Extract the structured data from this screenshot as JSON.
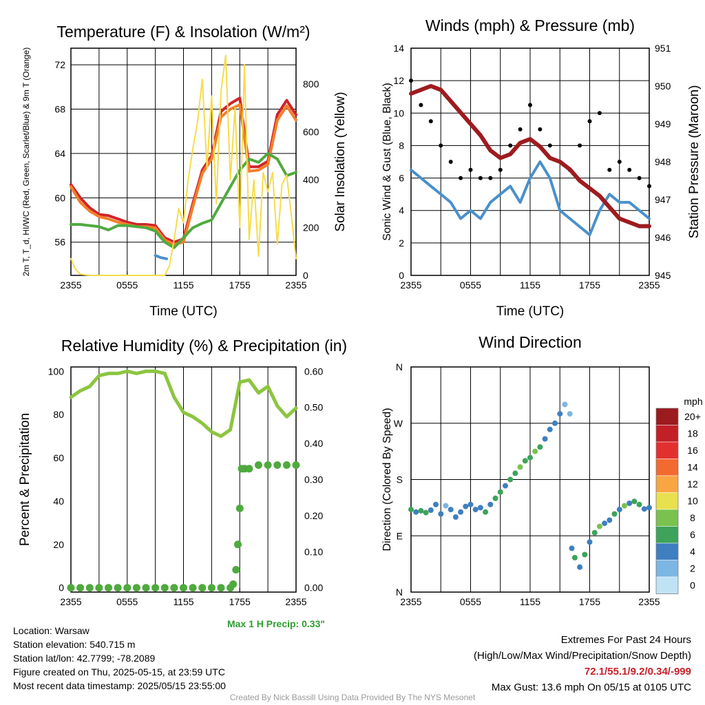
{
  "chart_data": [
    {
      "type": "line",
      "title": "Temperature (F) & Insolation (W/m²)",
      "xlabel": "Time (UTC)",
      "ylabel": "2m T, T_d, HI/WC (Red, Green, Scarlet/Blue) & 9m T (Orange)",
      "ylabel2": "Solar Insolation (Yellow)",
      "x_ticks": [
        "2355",
        "0555",
        "1155",
        "1755",
        "2355"
      ],
      "ylim": [
        53,
        73.5
      ],
      "y_ticks": [
        56,
        60,
        64,
        68,
        72
      ],
      "ylim2": [
        0,
        950
      ],
      "y2_ticks": [
        0,
        200,
        400,
        600,
        800
      ],
      "series": [
        {
          "color": "#d0242a",
          "axis": "left",
          "x": [
            0,
            1,
            2,
            3,
            4,
            5,
            6,
            7,
            8,
            9,
            10,
            11,
            12,
            13,
            14,
            15,
            16,
            17,
            18,
            19,
            20,
            21,
            22,
            23,
            24
          ],
          "values": [
            61.2,
            60.0,
            59.1,
            58.5,
            58.4,
            58.1,
            57.8,
            57.6,
            57.6,
            57.5,
            56.4,
            56.0,
            56.3,
            59.5,
            62.5,
            63.8,
            67.8,
            68.5,
            69.0,
            62.8,
            62.8,
            63.3,
            67.5,
            68.8,
            67.5
          ]
        },
        {
          "color": "#f37f2a",
          "axis": "left",
          "x": [
            0,
            1,
            2,
            3,
            4,
            5,
            6,
            7,
            8,
            9,
            10,
            11,
            12,
            13,
            14,
            15,
            16,
            17,
            18,
            19,
            20,
            21,
            22,
            23,
            24
          ],
          "values": [
            61.0,
            59.6,
            58.8,
            58.3,
            58.1,
            57.8,
            57.6,
            57.4,
            57.4,
            57.3,
            56.2,
            55.8,
            56.0,
            59.2,
            62.2,
            63.5,
            67.3,
            68.0,
            68.4,
            62.4,
            62.5,
            63.0,
            67.0,
            68.3,
            67.0
          ]
        },
        {
          "color": "#4faa3e",
          "axis": "left",
          "x": [
            0,
            1,
            2,
            3,
            4,
            5,
            6,
            7,
            8,
            9,
            10,
            11,
            12,
            13,
            14,
            15,
            16,
            17,
            18,
            19,
            20,
            21,
            22,
            23,
            24
          ],
          "values": [
            57.6,
            57.6,
            57.5,
            57.4,
            57.1,
            57.5,
            57.5,
            57.4,
            57.3,
            57.0,
            56.0,
            55.5,
            56.4,
            57.3,
            57.7,
            58.0,
            59.5,
            61.0,
            62.5,
            63.5,
            63.2,
            64.0,
            63.5,
            62.0,
            62.3
          ]
        },
        {
          "color": "#4a90cc",
          "axis": "left",
          "x": [
            9.0,
            9.6,
            10.2
          ],
          "values": [
            54.8,
            54.6,
            54.5
          ]
        },
        {
          "color": "#f5dc4c",
          "axis": "right",
          "x": [
            0,
            0.5,
            1,
            2,
            3,
            4,
            5,
            6,
            7,
            8,
            9,
            10,
            10.5,
            11,
            11.5,
            12,
            12.5,
            13,
            13.5,
            14,
            14.5,
            15,
            15.5,
            16,
            16.5,
            17,
            17.5,
            18,
            18.5,
            19,
            19.5,
            20,
            20.5,
            21,
            21.5,
            22,
            22.5,
            23,
            23.5,
            24
          ],
          "values": [
            70,
            25,
            5,
            0,
            0,
            0,
            0,
            0,
            0,
            0,
            0,
            0,
            40,
            150,
            280,
            220,
            400,
            530,
            640,
            820,
            450,
            750,
            300,
            770,
            920,
            400,
            700,
            200,
            880,
            150,
            400,
            80,
            430,
            350,
            430,
            130,
            380,
            420,
            250,
            70
          ]
        }
      ]
    },
    {
      "type": "line",
      "title": "Winds (mph) & Pressure (mb)",
      "xlabel": "Time (UTC)",
      "ylabel": "Sonic Wind & Gust (Blue, Black)",
      "ylabel2": "Station Pressure (Maroon)",
      "x_ticks": [
        "2355",
        "0555",
        "1155",
        "1755",
        "2355"
      ],
      "ylim": [
        0,
        14
      ],
      "y_ticks": [
        0,
        2,
        4,
        6,
        8,
        10,
        12,
        14
      ],
      "ylim2": [
        945,
        951
      ],
      "y2_ticks": [
        945,
        946,
        947,
        948,
        949,
        950,
        951
      ],
      "series": [
        {
          "name": "Sonic Wind",
          "color": "#4a90cc",
          "axis": "left",
          "x": [
            0,
            1,
            2,
            3,
            4,
            5,
            6,
            7,
            8,
            9,
            10,
            11,
            12,
            13,
            14,
            15,
            16,
            17,
            18,
            19,
            20,
            21,
            22,
            23,
            24
          ],
          "values": [
            6.5,
            6.0,
            5.5,
            5.0,
            4.5,
            3.5,
            4.0,
            3.5,
            4.5,
            5.0,
            5.5,
            4.5,
            6.0,
            7.0,
            6.0,
            4.0,
            3.5,
            3.0,
            2.5,
            4.0,
            5.0,
            4.5,
            4.5,
            4.0,
            3.5
          ]
        },
        {
          "name": "Gust",
          "color": "#000000",
          "axis": "left",
          "x": [
            0,
            1,
            2,
            3,
            4,
            5,
            6,
            7,
            8,
            9,
            10,
            11,
            12,
            13,
            14,
            15,
            16,
            17,
            18,
            19,
            20,
            21,
            22,
            23,
            24
          ],
          "values": [
            12.0,
            10.5,
            9.5,
            8.0,
            7.0,
            6.0,
            6.5,
            6.0,
            6.0,
            6.5,
            8.0,
            9.0,
            10.5,
            9.0,
            8.0,
            7.0,
            6.5,
            8.0,
            9.5,
            10.0,
            6.5,
            7.0,
            6.5,
            6.0,
            5.5
          ]
        },
        {
          "name": "Station Pressure",
          "color": "#9e1b1f",
          "axis": "right",
          "x": [
            0,
            1,
            2,
            3,
            4,
            5,
            6,
            7,
            8,
            9,
            10,
            11,
            12,
            13,
            14,
            15,
            16,
            17,
            18,
            19,
            20,
            21,
            22,
            23,
            24
          ],
          "values": [
            949.8,
            949.9,
            950.0,
            949.9,
            949.6,
            949.3,
            949.0,
            948.7,
            948.3,
            948.1,
            948.2,
            948.5,
            948.6,
            948.4,
            948.1,
            948.0,
            947.8,
            947.5,
            947.3,
            947.1,
            946.8,
            946.5,
            946.4,
            946.3,
            946.3
          ]
        }
      ]
    },
    {
      "type": "line",
      "title": "Relative Humidity (%) & Precipitation (in)",
      "ylabel": "Percent & Precipitation",
      "x_ticks": [
        "2355",
        "0555",
        "1155",
        "1755",
        "2355"
      ],
      "ylim": [
        -2,
        102
      ],
      "y_ticks": [
        0,
        20,
        40,
        60,
        80,
        100
      ],
      "ylim2": [
        -0.012,
        0.612
      ],
      "y2_ticks": [
        "0.00",
        "0.10",
        "0.20",
        "0.30",
        "0.40",
        "0.50",
        "0.60"
      ],
      "series": [
        {
          "name": "Relative Humidity",
          "color": "#8cc540",
          "axis": "left",
          "x": [
            0,
            1,
            2,
            3,
            4,
            5,
            6,
            7,
            8,
            9,
            10,
            11,
            12,
            13,
            14,
            15,
            16,
            17,
            18,
            19,
            20,
            21,
            22,
            23,
            24
          ],
          "values": [
            88,
            91,
            93,
            98,
            99,
            99,
            100,
            99,
            100,
            100,
            99,
            88,
            81,
            79,
            76,
            72,
            70,
            73,
            95,
            96,
            90,
            93,
            84,
            79,
            83
          ]
        },
        {
          "name": "Precipitation",
          "color": "#4faa3e",
          "axis": "right",
          "x": [
            0,
            1,
            2,
            3,
            4,
            5,
            6,
            7,
            8,
            9,
            10,
            11,
            12,
            13,
            14,
            15,
            16,
            17,
            17.3,
            17.6,
            17.8,
            18.0,
            18.2,
            18.5,
            19,
            20,
            21,
            22,
            23,
            24
          ],
          "values": [
            0,
            0,
            0,
            0,
            0,
            0,
            0,
            0,
            0,
            0,
            0,
            0,
            0,
            0,
            0,
            0,
            0,
            0,
            0.01,
            0.05,
            0.12,
            0.22,
            0.33,
            0.33,
            0.33,
            0.34,
            0.34,
            0.34,
            0.34,
            0.34
          ]
        }
      ],
      "annotation": "Max 1 H Precip: 0.33\""
    },
    {
      "type": "scatter",
      "title": "Wind Direction",
      "ylabel": "Direction (Colored By Speed)",
      "x_ticks": [
        "2355",
        "0555",
        "1155",
        "1755",
        "2355"
      ],
      "y_ticks": [
        "N",
        "E",
        "S",
        "W",
        "N"
      ],
      "ylim": [
        0,
        360
      ],
      "colorbar": {
        "unit": "mph",
        "labels": [
          "20+",
          "18",
          "16",
          "14",
          "12",
          "10",
          "8",
          "6",
          "4",
          "2",
          "0"
        ],
        "colors": [
          "#9b1b1e",
          "#c21f26",
          "#e2302f",
          "#f26a30",
          "#f9a543",
          "#e8e04d",
          "#79c24e",
          "#3da35a",
          "#3e7fc0",
          "#7cb6e2",
          "#bfe3f5"
        ]
      },
      "points": [
        {
          "x": 0,
          "dir": 132,
          "speed": 6
        },
        {
          "x": 0.5,
          "dir": 128,
          "speed": 4
        },
        {
          "x": 1,
          "dir": 130,
          "speed": 5
        },
        {
          "x": 1.5,
          "dir": 127,
          "speed": 6
        },
        {
          "x": 2,
          "dir": 131,
          "speed": 4
        },
        {
          "x": 2.5,
          "dir": 140,
          "speed": 3
        },
        {
          "x": 3,
          "dir": 125,
          "speed": 4
        },
        {
          "x": 3.5,
          "dir": 138,
          "speed": 2
        },
        {
          "x": 4,
          "dir": 132,
          "speed": 4
        },
        {
          "x": 4.5,
          "dir": 120,
          "speed": 3
        },
        {
          "x": 5,
          "dir": 128,
          "speed": 4
        },
        {
          "x": 5.5,
          "dir": 137,
          "speed": 3
        },
        {
          "x": 6,
          "dir": 140,
          "speed": 4
        },
        {
          "x": 6.5,
          "dir": 132,
          "speed": 3
        },
        {
          "x": 7,
          "dir": 135,
          "speed": 4
        },
        {
          "x": 7.5,
          "dir": 128,
          "speed": 5
        },
        {
          "x": 8,
          "dir": 140,
          "speed": 4
        },
        {
          "x": 8.5,
          "dir": 150,
          "speed": 5
        },
        {
          "x": 9,
          "dir": 160,
          "speed": 6
        },
        {
          "x": 9.5,
          "dir": 170,
          "speed": 4
        },
        {
          "x": 10,
          "dir": 180,
          "speed": 6
        },
        {
          "x": 10.5,
          "dir": 190,
          "speed": 5
        },
        {
          "x": 11,
          "dir": 200,
          "speed": 7
        },
        {
          "x": 11.5,
          "dir": 210,
          "speed": 6
        },
        {
          "x": 12,
          "dir": 215,
          "speed": 5
        },
        {
          "x": 12.5,
          "dir": 225,
          "speed": 7
        },
        {
          "x": 13,
          "dir": 232,
          "speed": 5
        },
        {
          "x": 13.5,
          "dir": 245,
          "speed": 4
        },
        {
          "x": 14,
          "dir": 260,
          "speed": 3
        },
        {
          "x": 14.5,
          "dir": 270,
          "speed": 4
        },
        {
          "x": 15,
          "dir": 285,
          "speed": 3
        },
        {
          "x": 15.5,
          "dir": 300,
          "speed": 2
        },
        {
          "x": 16,
          "dir": 285,
          "speed": 1
        },
        {
          "x": 16.2,
          "dir": 70,
          "speed": 4
        },
        {
          "x": 16.5,
          "dir": 55,
          "speed": 6
        },
        {
          "x": 17,
          "dir": 40,
          "speed": 3
        },
        {
          "x": 17.5,
          "dir": 60,
          "speed": 5
        },
        {
          "x": 18,
          "dir": 80,
          "speed": 4
        },
        {
          "x": 18.5,
          "dir": 95,
          "speed": 5
        },
        {
          "x": 19,
          "dir": 105,
          "speed": 7
        },
        {
          "x": 19.5,
          "dir": 110,
          "speed": 4
        },
        {
          "x": 20,
          "dir": 115,
          "speed": 4
        },
        {
          "x": 20.5,
          "dir": 125,
          "speed": 6
        },
        {
          "x": 21,
          "dir": 132,
          "speed": 4
        },
        {
          "x": 21.5,
          "dir": 138,
          "speed": 7
        },
        {
          "x": 22,
          "dir": 142,
          "speed": 4
        },
        {
          "x": 22.5,
          "dir": 145,
          "speed": 6
        },
        {
          "x": 23,
          "dir": 140,
          "speed": 5
        },
        {
          "x": 23.5,
          "dir": 133,
          "speed": 4
        },
        {
          "x": 24,
          "dir": 135,
          "speed": 3
        }
      ]
    }
  ],
  "info": {
    "location": "Location: Warsaw",
    "elevation": "Station elevation: 540.715 m",
    "latlon": "Station lat/lon: 42.7799; -78.2089",
    "created": "Figure created on Thu, 2025-05-15, at 23:59 UTC",
    "recent": "Most recent data timestamp: 2025/05/15 23:55:00"
  },
  "extremes": {
    "title": "Extremes For Past 24 Hours",
    "subtitle": "(High/Low/Max Wind/Precipitation/Snow Depth)",
    "values": "72.1/55.1/9.2/0.34/-999",
    "gust": "Max Gust: 13.6 mph On 05/15 at 0105 UTC"
  },
  "credit": "Created By Nick Bassill Using Data Provided By The NYS Mesonet"
}
